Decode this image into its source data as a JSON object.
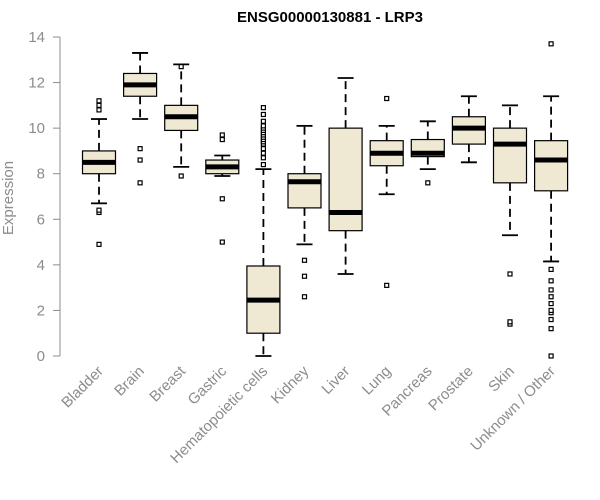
{
  "chart_data": {
    "type": "boxplot",
    "title": "ENSG00000130881 - LRP3",
    "xlabel": "",
    "ylabel": "Expression",
    "ylim": [
      0,
      14
    ],
    "yticks": [
      0,
      2,
      4,
      6,
      8,
      10,
      12,
      14
    ],
    "box_fill": "#efe8d2",
    "line_color": "#000000",
    "axis_color": "#8c8c8c",
    "categories": [
      "Bladder",
      "Brain",
      "Breast",
      "Gastric",
      "Hematopoietic cells",
      "Kidney",
      "Liver",
      "Lung",
      "Pancreas",
      "Prostate",
      "Skin",
      "Unknown / Other"
    ],
    "boxes": [
      {
        "q1": 8.0,
        "median": 8.5,
        "q3": 9.0,
        "whisker_low": 6.7,
        "whisker_high": 10.4,
        "outliers": [
          4.9,
          6.3,
          6.4,
          10.8,
          11.0,
          11.2
        ]
      },
      {
        "q1": 11.4,
        "median": 11.9,
        "q3": 12.4,
        "whisker_low": 10.4,
        "whisker_high": 13.3,
        "outliers": [
          7.6,
          8.6,
          9.1
        ]
      },
      {
        "q1": 9.9,
        "median": 10.5,
        "q3": 11.0,
        "whisker_low": 8.3,
        "whisker_high": 12.8,
        "outliers": [
          7.9,
          12.7
        ]
      },
      {
        "q1": 8.0,
        "median": 8.3,
        "q3": 8.6,
        "whisker_low": 7.9,
        "whisker_high": 8.8,
        "outliers": [
          5.0,
          6.9,
          9.5,
          9.7
        ]
      },
      {
        "q1": 1.0,
        "median": 2.45,
        "q3": 3.95,
        "whisker_low": 0.0,
        "whisker_high": 8.2,
        "outliers": [
          8.4,
          8.7,
          8.9,
          9.1,
          9.3,
          9.4,
          9.5,
          9.6,
          9.7,
          9.8,
          9.9,
          10.0,
          10.1,
          10.3,
          10.6,
          10.9
        ]
      },
      {
        "q1": 6.5,
        "median": 7.65,
        "q3": 8.0,
        "whisker_low": 4.9,
        "whisker_high": 10.1,
        "outliers": [
          2.6,
          3.5,
          4.2
        ]
      },
      {
        "q1": 5.5,
        "median": 6.3,
        "q3": 10.0,
        "whisker_low": 3.6,
        "whisker_high": 12.2,
        "outliers": []
      },
      {
        "q1": 8.35,
        "median": 8.9,
        "q3": 9.45,
        "whisker_low": 7.1,
        "whisker_high": 10.1,
        "outliers": [
          3.1,
          11.3
        ]
      },
      {
        "q1": 8.75,
        "median": 8.9,
        "q3": 9.5,
        "whisker_low": 8.2,
        "whisker_high": 10.3,
        "outliers": [
          7.6
        ]
      },
      {
        "q1": 9.3,
        "median": 10.0,
        "q3": 10.5,
        "whisker_low": 8.5,
        "whisker_high": 11.4,
        "outliers": []
      },
      {
        "q1": 7.6,
        "median": 9.3,
        "q3": 10.0,
        "whisker_low": 5.3,
        "whisker_high": 11.0,
        "outliers": [
          1.4,
          1.5,
          3.6
        ]
      },
      {
        "q1": 7.25,
        "median": 8.6,
        "q3": 9.45,
        "whisker_low": 4.15,
        "whisker_high": 11.4,
        "outliers": [
          0.0,
          1.2,
          1.6,
          1.9,
          2.0,
          2.3,
          2.6,
          2.9,
          3.3,
          3.8,
          13.7
        ]
      }
    ]
  }
}
